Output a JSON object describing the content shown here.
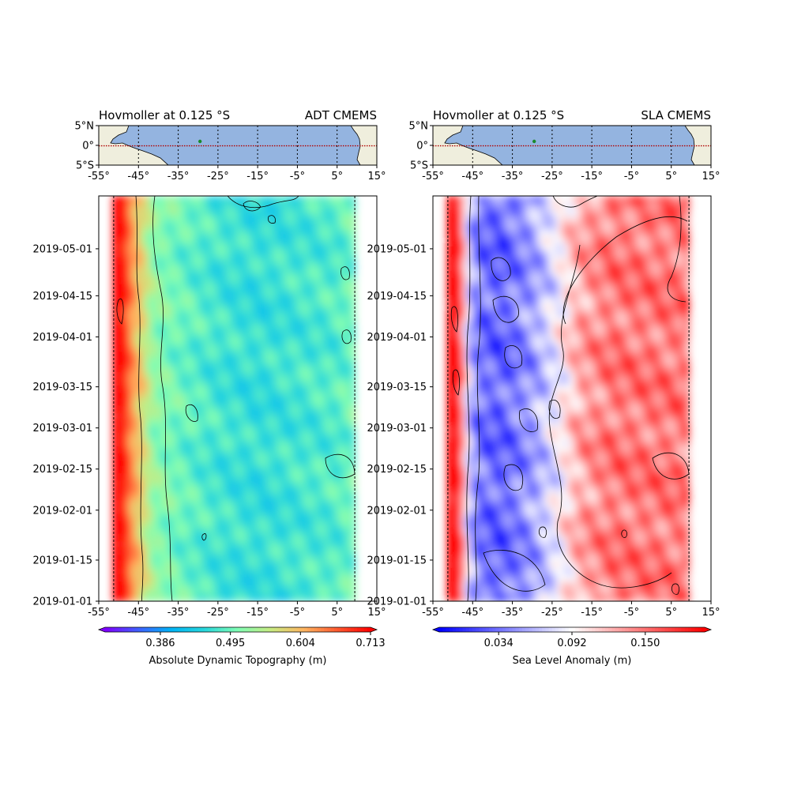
{
  "chart_data": [
    {
      "type": "map",
      "title_left": "Hovmoller at 0.125 °S",
      "title_right": "ADT CMEMS",
      "x_ticks": [
        "-55°",
        "-45°",
        "-35°",
        "-25°",
        "-15°",
        "-5°",
        "5°",
        "15°"
      ],
      "x_tick_values": [
        -55,
        -45,
        -35,
        -25,
        -15,
        -5,
        5,
        15
      ],
      "y_ticks": [
        "5°N",
        "0°",
        "5°S"
      ],
      "y_tick_values": [
        5,
        0,
        -5
      ],
      "xlim": [
        -55,
        15
      ],
      "ylim": [
        -5,
        5
      ],
      "section_latitude": -0.125,
      "ocean_color": "#94b4e0",
      "land_color": "#efeedd",
      "marker_point": [
        -29.5,
        1.0
      ]
    },
    {
      "type": "heatmap",
      "x_ticks": [
        "-55°",
        "-45°",
        "-35°",
        "-25°",
        "-15°",
        "-5°",
        "5°",
        "15°"
      ],
      "x_tick_values": [
        -55,
        -45,
        -35,
        -25,
        -15,
        -5,
        5,
        15
      ],
      "xlim": [
        -55,
        15
      ],
      "y_ticks": [
        "2019-01-01",
        "2019-01-15",
        "2019-02-01",
        "2019-02-15",
        "2019-03-01",
        "2019-03-15",
        "2019-04-01",
        "2019-04-15",
        "2019-05-01"
      ],
      "y_tick_values": [
        "2019-01-01",
        "2019-01-15",
        "2019-02-01",
        "2019-02-15",
        "2019-03-01",
        "2019-03-15",
        "2019-04-01",
        "2019-04-15",
        "2019-05-01"
      ],
      "ylim": [
        "2019-01-01",
        "2019-05-19"
      ],
      "data_xrange": [
        -51.5,
        9.5
      ],
      "colormap": "rainbow",
      "profile": [
        [
          -51.5,
          0.78
        ],
        [
          -48.5,
          0.7
        ],
        [
          -46.5,
          0.62
        ],
        [
          -44.0,
          0.58
        ],
        [
          -41.5,
          0.52
        ],
        [
          -35,
          0.495
        ],
        [
          -25,
          0.47
        ],
        [
          -15,
          0.46
        ],
        [
          -5,
          0.47
        ],
        [
          5,
          0.48
        ],
        [
          9.5,
          0.5
        ]
      ],
      "colorbar": {
        "label": "Absolute Dynamic Topography (m)",
        "ticks": [
          "0.386",
          "0.495",
          "0.604",
          "0.713"
        ],
        "tick_values": [
          0.386,
          0.495,
          0.604,
          0.713
        ],
        "range": [
          0.3,
          0.713
        ]
      }
    },
    {
      "type": "map",
      "title_left": "Hovmoller at 0.125 °S",
      "title_right": "SLA CMEMS",
      "x_ticks": [
        "-55°",
        "-45°",
        "-35°",
        "-25°",
        "-15°",
        "-5°",
        "5°",
        "15°"
      ],
      "x_tick_values": [
        -55,
        -45,
        -35,
        -25,
        -15,
        -5,
        5,
        15
      ],
      "y_ticks": [
        "5°N",
        "0°",
        "5°S"
      ],
      "y_tick_values": [
        5,
        0,
        -5
      ],
      "xlim": [
        -55,
        15
      ],
      "ylim": [
        -5,
        5
      ],
      "section_latitude": -0.125,
      "ocean_color": "#94b4e0",
      "land_color": "#efeedd",
      "marker_point": [
        -29.5,
        1.0
      ]
    },
    {
      "type": "heatmap",
      "x_ticks": [
        "-55°",
        "-45°",
        "-35°",
        "-25°",
        "-15°",
        "-5°",
        "5°",
        "15°"
      ],
      "x_tick_values": [
        -55,
        -45,
        -35,
        -25,
        -15,
        -5,
        5,
        15
      ],
      "xlim": [
        -55,
        15
      ],
      "y_ticks": [
        "2019-01-01",
        "2019-01-15",
        "2019-02-01",
        "2019-02-15",
        "2019-03-01",
        "2019-03-15",
        "2019-04-01",
        "2019-04-15",
        "2019-05-01"
      ],
      "y_tick_values": [
        "2019-01-01",
        "2019-01-15",
        "2019-02-01",
        "2019-02-15",
        "2019-03-01",
        "2019-03-15",
        "2019-04-01",
        "2019-04-15",
        "2019-05-01"
      ],
      "ylim": [
        "2019-01-01",
        "2019-05-19"
      ],
      "data_xrange": [
        -51.5,
        9.5
      ],
      "colormap": "bwr",
      "profile": [
        [
          -51.5,
          0.22
        ],
        [
          -48.5,
          0.2
        ],
        [
          -46.5,
          0.08
        ],
        [
          -44.0,
          0.035
        ],
        [
          -38,
          0.025
        ],
        [
          -30,
          0.05
        ],
        [
          -24,
          0.085
        ],
        [
          -18,
          0.13
        ],
        [
          -10,
          0.15
        ],
        [
          0,
          0.15
        ],
        [
          9.5,
          0.15
        ]
      ],
      "colorbar": {
        "label": "Sea Level Anomaly (m)",
        "ticks": [
          "0.034",
          "0.092",
          "0.150"
        ],
        "tick_values": [
          0.034,
          0.092,
          0.15
        ],
        "range": [
          -0.013,
          0.197
        ]
      }
    }
  ]
}
